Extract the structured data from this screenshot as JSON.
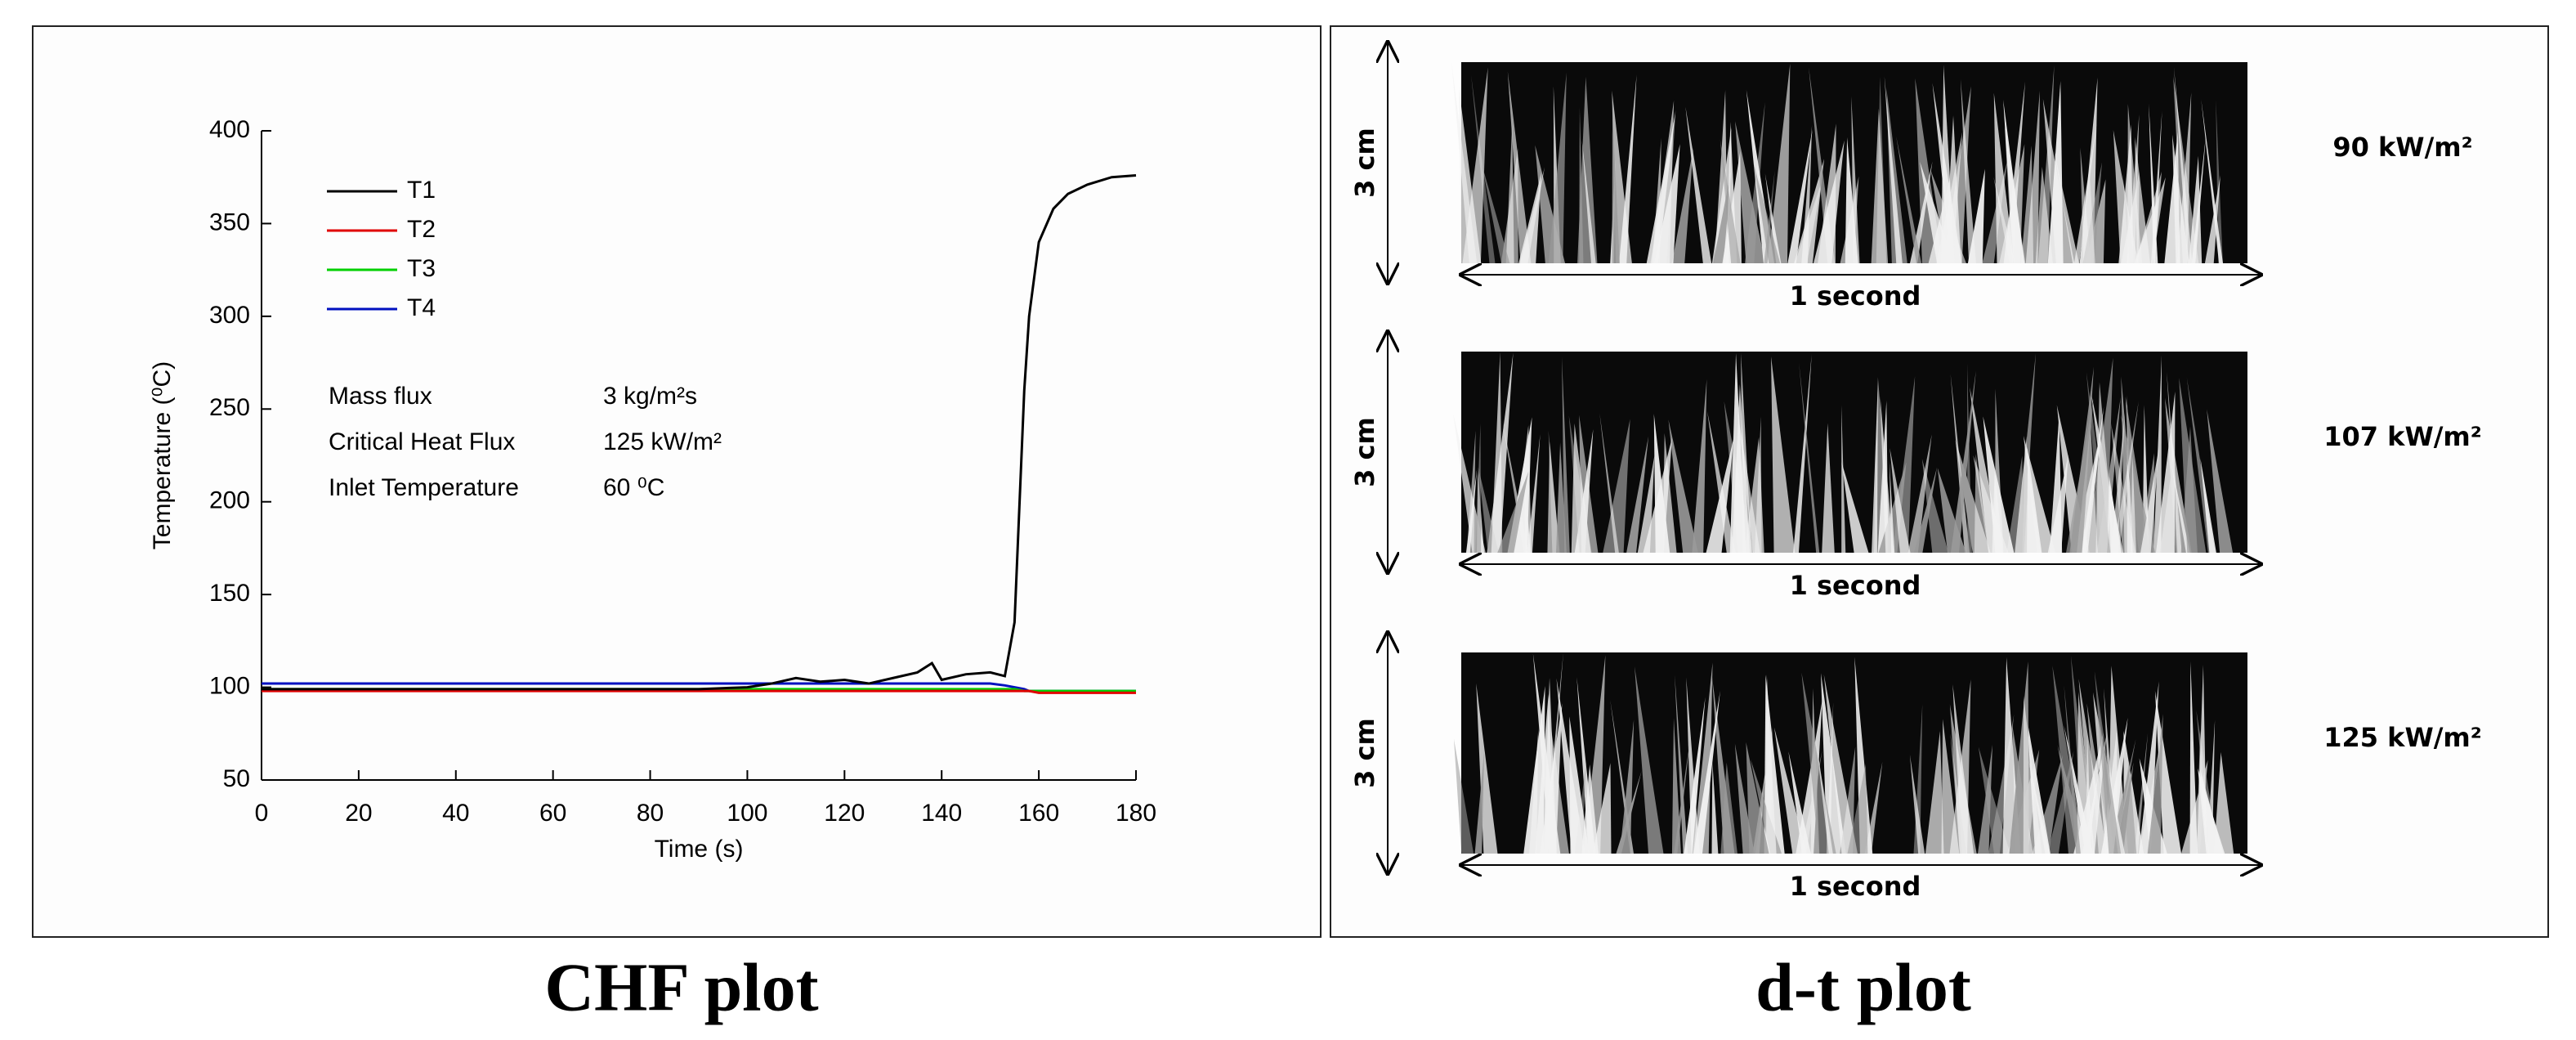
{
  "chart_data": {
    "type": "line",
    "caption": "CHF plot",
    "x_label": "Time (s)",
    "y_label": "Temperature (⁰C)",
    "x": [
      0,
      10,
      20,
      30,
      40,
      50,
      60,
      70,
      80,
      90,
      100,
      105,
      110,
      115,
      120,
      125,
      130,
      135,
      138,
      140,
      145,
      150,
      153,
      155,
      157,
      158,
      160,
      163,
      166,
      170,
      175,
      180
    ],
    "series": [
      {
        "name": "T1",
        "color": "#000000",
        "values": [
          99,
          99,
          99,
          99,
          99,
          99,
          99,
          99,
          99,
          99,
          100,
          102,
          105,
          103,
          104,
          102,
          105,
          108,
          113,
          104,
          107,
          108,
          106,
          135,
          260,
          300,
          340,
          358,
          366,
          371,
          375,
          376
        ]
      },
      {
        "name": "T2",
        "color": "#e00000",
        "values": [
          98,
          98,
          98,
          98,
          98,
          98,
          98,
          98,
          98,
          98,
          98,
          98,
          98,
          98,
          98,
          98,
          98,
          98,
          98,
          98,
          98,
          98,
          98,
          98,
          98,
          98,
          97,
          97,
          97,
          97,
          97,
          97
        ]
      },
      {
        "name": "T3",
        "color": "#00d000",
        "values": [
          99,
          99,
          99,
          99,
          99,
          99,
          99,
          99,
          99,
          99,
          99,
          99,
          99,
          99,
          99,
          99,
          99,
          99,
          99,
          99,
          99,
          99,
          99,
          99,
          98,
          98,
          98,
          98,
          98,
          98,
          98,
          98
        ]
      },
      {
        "name": "T4",
        "color": "#0010c0",
        "values": [
          102,
          102,
          102,
          102,
          102,
          102,
          102,
          102,
          102,
          102,
          102,
          102,
          102,
          102,
          102,
          102,
          102,
          102,
          102,
          102,
          102,
          102,
          101,
          100,
          99,
          98,
          98,
          98,
          98,
          98,
          98,
          98
        ]
      }
    ],
    "xlim": [
      0,
      180
    ],
    "xticks": [
      0,
      20,
      40,
      60,
      80,
      100,
      120,
      140,
      160,
      180
    ],
    "ylim": [
      50,
      400
    ],
    "yticks": [
      50,
      100,
      150,
      200,
      250,
      300,
      350,
      400
    ],
    "legend": "upper left",
    "annotations": [
      [
        "Mass flux",
        "3 kg/m²s"
      ],
      [
        "Critical Heat Flux",
        "125 kW/m²"
      ],
      [
        "Inlet Temperature",
        "60 ⁰C"
      ]
    ]
  },
  "dt_plot": {
    "caption": "d-t plot",
    "rows": [
      {
        "height": "3 cm",
        "duration": "1 second",
        "flux": "90 kW/m²"
      },
      {
        "height": "3 cm",
        "duration": "1 second",
        "flux": "107 kW/m²"
      },
      {
        "height": "3 cm",
        "duration": "1 second",
        "flux": "125 kW/m²"
      }
    ]
  }
}
